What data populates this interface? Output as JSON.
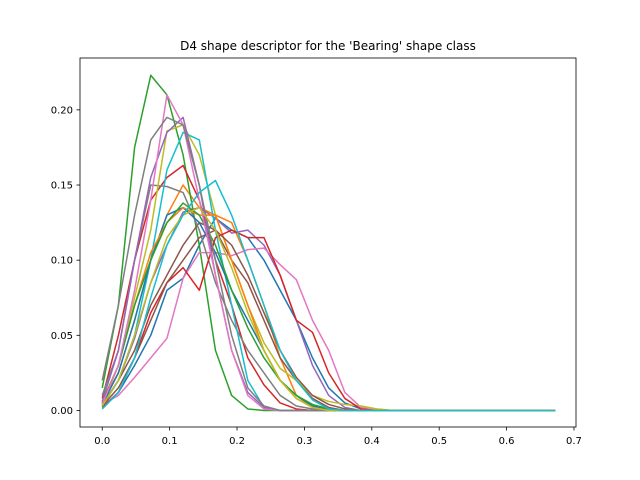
{
  "chart_data": {
    "type": "line",
    "title": "D4 shape descriptor for the 'Bearing' shape class",
    "xlabel": "",
    "ylabel": "",
    "xlim": [
      -0.033,
      0.703
    ],
    "ylim": [
      -0.011,
      0.2345
    ],
    "x_ticks": [
      0.0,
      0.1,
      0.2,
      0.3,
      0.4,
      0.5,
      0.6,
      0.7
    ],
    "x_tick_labels": [
      "0.0",
      "0.1",
      "0.2",
      "0.3",
      "0.4",
      "0.5",
      "0.6",
      "0.7"
    ],
    "y_ticks": [
      0.0,
      0.05,
      0.1,
      0.15,
      0.2
    ],
    "y_tick_labels": [
      "0.00",
      "0.05",
      "0.10",
      "0.15",
      "0.20"
    ],
    "grid": false,
    "legend": "none",
    "x": [
      0.0,
      0.024,
      0.048,
      0.072,
      0.096,
      0.12,
      0.144,
      0.168,
      0.192,
      0.216,
      0.24,
      0.264,
      0.288,
      0.312,
      0.336,
      0.36,
      0.384,
      0.408,
      0.432,
      0.456,
      0.48,
      0.504,
      0.528,
      0.552,
      0.576,
      0.6,
      0.624,
      0.648,
      0.672
    ],
    "series": [
      {
        "color": "#1f77b4",
        "values": [
          0.002,
          0.012,
          0.03,
          0.05,
          0.08,
          0.088,
          0.11,
          0.128,
          0.12,
          0.115,
          0.1,
          0.08,
          0.06,
          0.035,
          0.015,
          0.005,
          0.001,
          0,
          0,
          0,
          0,
          0,
          0,
          0,
          0,
          0,
          0,
          0,
          0
        ]
      },
      {
        "color": "#ff7f0e",
        "values": [
          0.006,
          0.025,
          0.06,
          0.1,
          0.13,
          0.15,
          0.135,
          0.13,
          0.125,
          0.1,
          0.07,
          0.035,
          0.01,
          0.002,
          0,
          0,
          0,
          0,
          0,
          0,
          0,
          0,
          0,
          0,
          0,
          0,
          0,
          0,
          0
        ]
      },
      {
        "color": "#2ca02c",
        "values": [
          0.015,
          0.07,
          0.175,
          0.223,
          0.21,
          0.17,
          0.11,
          0.04,
          0.01,
          0.001,
          0,
          0,
          0,
          0,
          0,
          0,
          0,
          0,
          0,
          0,
          0,
          0,
          0,
          0,
          0,
          0,
          0,
          0,
          0
        ]
      },
      {
        "color": "#d62728",
        "values": [
          0.008,
          0.05,
          0.1,
          0.14,
          0.155,
          0.163,
          0.14,
          0.1,
          0.07,
          0.035,
          0.017,
          0.005,
          0.001,
          0,
          0,
          0,
          0,
          0,
          0,
          0,
          0,
          0,
          0,
          0,
          0,
          0,
          0,
          0,
          0
        ]
      },
      {
        "color": "#9467bd",
        "values": [
          0.003,
          0.02,
          0.048,
          0.085,
          0.11,
          0.132,
          0.135,
          0.128,
          0.118,
          0.12,
          0.11,
          0.09,
          0.06,
          0.03,
          0.01,
          0.002,
          0,
          0,
          0,
          0,
          0,
          0,
          0,
          0,
          0,
          0,
          0,
          0,
          0
        ]
      },
      {
        "color": "#8c564b",
        "values": [
          0.004,
          0.02,
          0.04,
          0.07,
          0.09,
          0.11,
          0.125,
          0.12,
          0.1,
          0.085,
          0.06,
          0.035,
          0.02,
          0.008,
          0.002,
          0,
          0,
          0,
          0,
          0,
          0,
          0,
          0,
          0,
          0,
          0,
          0,
          0,
          0
        ]
      },
      {
        "color": "#e377c2",
        "values": [
          0.004,
          0.01,
          0.022,
          0.035,
          0.048,
          0.088,
          0.105,
          0.105,
          0.103,
          0.107,
          0.108,
          0.097,
          0.087,
          0.06,
          0.04,
          0.012,
          0.002,
          0,
          0,
          0,
          0,
          0,
          0,
          0,
          0,
          0,
          0,
          0,
          0
        ]
      },
      {
        "color": "#7f7f7f",
        "values": [
          0.01,
          0.04,
          0.1,
          0.15,
          0.149,
          0.145,
          0.12,
          0.085,
          0.06,
          0.04,
          0.025,
          0.01,
          0.003,
          0.001,
          0,
          0,
          0,
          0,
          0,
          0,
          0,
          0,
          0,
          0,
          0,
          0,
          0,
          0,
          0
        ]
      },
      {
        "color": "#bcbd22",
        "values": [
          0.006,
          0.03,
          0.075,
          0.12,
          0.186,
          0.19,
          0.17,
          0.13,
          0.1,
          0.07,
          0.045,
          0.028,
          0.02,
          0.01,
          0.006,
          0.004,
          0.003,
          0.001,
          0,
          0,
          0,
          0,
          0,
          0,
          0,
          0,
          0,
          0,
          0
        ]
      },
      {
        "color": "#17becf",
        "values": [
          0.003,
          0.02,
          0.05,
          0.1,
          0.16,
          0.185,
          0.18,
          0.12,
          0.07,
          0.02,
          0.002,
          0,
          0,
          0,
          0,
          0,
          0,
          0,
          0,
          0,
          0,
          0,
          0,
          0,
          0,
          0,
          0,
          0,
          0
        ]
      },
      {
        "color": "#1f77b4",
        "values": [
          0.004,
          0.025,
          0.06,
          0.1,
          0.13,
          0.135,
          0.125,
          0.105,
          0.08,
          0.06,
          0.04,
          0.02,
          0.01,
          0.003,
          0.001,
          0,
          0,
          0,
          0,
          0,
          0,
          0,
          0,
          0,
          0,
          0,
          0,
          0,
          0
        ]
      },
      {
        "color": "#ff7f0e",
        "values": [
          0.005,
          0.03,
          0.07,
          0.105,
          0.125,
          0.135,
          0.13,
          0.13,
          0.1,
          0.07,
          0.04,
          0.02,
          0.008,
          0.002,
          0,
          0,
          0,
          0,
          0,
          0,
          0,
          0,
          0,
          0,
          0,
          0,
          0,
          0,
          0
        ]
      },
      {
        "color": "#2ca02c",
        "values": [
          0.005,
          0.03,
          0.07,
          0.1,
          0.125,
          0.138,
          0.13,
          0.11,
          0.08,
          0.055,
          0.035,
          0.02,
          0.01,
          0.004,
          0.001,
          0,
          0,
          0,
          0,
          0,
          0,
          0,
          0,
          0,
          0,
          0,
          0,
          0,
          0
        ]
      },
      {
        "color": "#d62728",
        "values": [
          0.002,
          0.012,
          0.035,
          0.065,
          0.085,
          0.095,
          0.08,
          0.115,
          0.12,
          0.115,
          0.115,
          0.09,
          0.06,
          0.052,
          0.025,
          0.008,
          0.001,
          0,
          0,
          0,
          0,
          0,
          0,
          0,
          0,
          0,
          0,
          0,
          0
        ]
      },
      {
        "color": "#9467bd",
        "values": [
          0.006,
          0.04,
          0.1,
          0.155,
          0.185,
          0.195,
          0.15,
          0.09,
          0.04,
          0.012,
          0.002,
          0,
          0,
          0,
          0,
          0,
          0,
          0,
          0,
          0,
          0,
          0,
          0,
          0,
          0,
          0,
          0,
          0,
          0
        ]
      },
      {
        "color": "#8c564b",
        "values": [
          0.003,
          0.015,
          0.035,
          0.06,
          0.085,
          0.1,
          0.115,
          0.12,
          0.11,
          0.09,
          0.065,
          0.04,
          0.022,
          0.01,
          0.004,
          0.001,
          0,
          0,
          0,
          0,
          0,
          0,
          0,
          0,
          0,
          0,
          0,
          0,
          0
        ]
      },
      {
        "color": "#e377c2",
        "values": [
          0.004,
          0.03,
          0.08,
          0.14,
          0.21,
          0.19,
          0.14,
          0.09,
          0.04,
          0.01,
          0.001,
          0,
          0,
          0,
          0,
          0,
          0,
          0,
          0,
          0,
          0,
          0,
          0,
          0,
          0,
          0,
          0,
          0,
          0
        ]
      },
      {
        "color": "#7f7f7f",
        "values": [
          0.02,
          0.07,
          0.13,
          0.18,
          0.195,
          0.19,
          0.15,
          0.1,
          0.05,
          0.015,
          0.003,
          0,
          0,
          0,
          0,
          0,
          0,
          0,
          0,
          0,
          0,
          0,
          0,
          0,
          0,
          0,
          0,
          0,
          0
        ]
      },
      {
        "color": "#bcbd22",
        "values": [
          0.003,
          0.02,
          0.05,
          0.085,
          0.115,
          0.13,
          0.135,
          0.12,
          0.095,
          0.065,
          0.04,
          0.02,
          0.008,
          0.002,
          0,
          0,
          0,
          0,
          0,
          0,
          0,
          0,
          0,
          0,
          0,
          0,
          0,
          0,
          0
        ]
      },
      {
        "color": "#17becf",
        "values": [
          0.001,
          0.012,
          0.035,
          0.075,
          0.11,
          0.13,
          0.145,
          0.153,
          0.13,
          0.1,
          0.07,
          0.04,
          0.02,
          0.007,
          0.001,
          0,
          0,
          0,
          0,
          0,
          0,
          0,
          0,
          0,
          0,
          0,
          0,
          0,
          0
        ]
      }
    ]
  }
}
